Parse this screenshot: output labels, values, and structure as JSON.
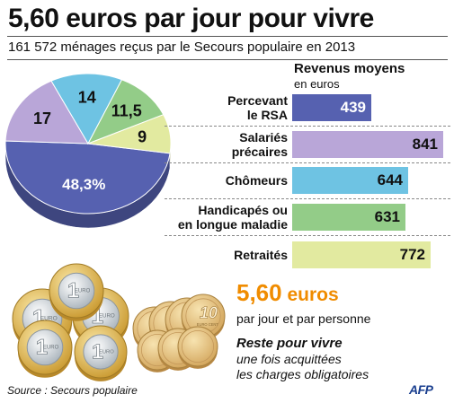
{
  "header": {
    "title": "5,60 euros par jour pour vivre",
    "subtitle": "161 572 ménages reçus par le Secours populaire en 2013"
  },
  "revenus": {
    "title": "Revenus moyens",
    "unit": "en euros"
  },
  "chart_data": [
    {
      "type": "pie",
      "labels": [
        "48,3%",
        "17",
        "14",
        "11,5",
        "9"
      ],
      "values": [
        48.3,
        17,
        14,
        11.5,
        9
      ],
      "colors": [
        "#5661b0",
        "#b9a6d8",
        "#6ec3e3",
        "#93cc88",
        "#e2eaa0"
      ]
    },
    {
      "type": "bar",
      "categories": [
        "Percevant le RSA",
        "Salariés précaires",
        "Chômeurs",
        "Handicapés ou en longue maladie",
        "Retraités"
      ],
      "category_lines": [
        [
          "Percevant",
          "le RSA"
        ],
        [
          "Salariés",
          "précaires"
        ],
        [
          "Chômeurs"
        ],
        [
          "Handicapés ou",
          "en longue maladie"
        ],
        [
          "Retraités"
        ]
      ],
      "values": [
        439,
        841,
        644,
        631,
        772
      ],
      "value_labels": [
        "439",
        "841",
        "644",
        "631",
        "772"
      ],
      "colors": [
        "#5661b0",
        "#b9a6d8",
        "#6ec3e3",
        "#93cc88",
        "#e2eaa0"
      ]
    }
  ],
  "callout": {
    "amount_number": "5,60",
    "amount_unit": "euros",
    "per_day": "par jour et par personne",
    "reste_title": "Reste pour vivre",
    "reste_line1": "une fois acquittées",
    "reste_line2": "les charges obligatoires"
  },
  "coins": {
    "one_euro_text": "EURO",
    "one_euro_digit": "1",
    "ten_cent_digit": "10",
    "ten_cent_text": "EURO CENT"
  },
  "footer": {
    "source": "Source : Secours populaire",
    "logo": "AFP"
  }
}
